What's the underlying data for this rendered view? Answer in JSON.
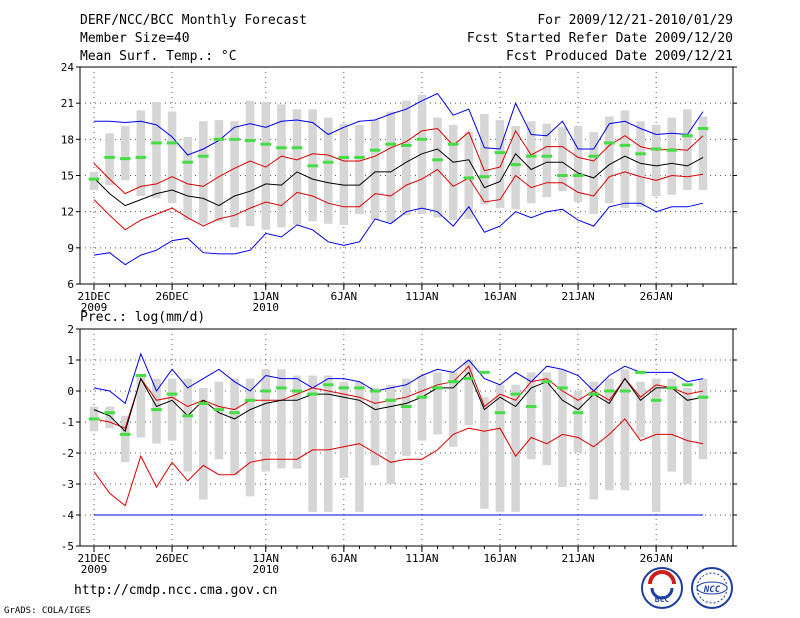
{
  "header": {
    "title": "DERF/NCC/BCC Monthly Forecast",
    "member_size": "Member Size=40",
    "variable": "Mean Surf. Temp.: °C",
    "forecast_period": "For 2009/12/21-2010/01/29",
    "started_refer": "Fcst Started Refer Date 2009/12/20",
    "produced": "Fcst Produced Date 2009/12/21"
  },
  "footer": {
    "url": "http://cmdp.ncc.cma.gov.cn",
    "credit": "GrADS: COLA/IGES",
    "logo_left": "BCC",
    "logo_right": "NCC"
  },
  "colors": {
    "box": "#d6d6d6",
    "ensemble_mean": "#000000",
    "extreme": "#0000ee",
    "percentile": "#dd0000",
    "climatology": "#44dd44",
    "grid": "#555555"
  },
  "chart_data": [
    {
      "type": "line",
      "title": "Mean Surf. Temp.: °C",
      "ylim": [
        6,
        24
      ],
      "yticks": [
        "6",
        "9",
        "12",
        "15",
        "18",
        "21",
        "24"
      ],
      "xticks": [
        {
          "label": "21DEC",
          "sub": "2009",
          "index": 0
        },
        {
          "label": "26DEC",
          "sub": "",
          "index": 5
        },
        {
          "label": "1JAN",
          "sub": "2010",
          "index": 11
        },
        {
          "label": "6JAN",
          "sub": "",
          "index": 16
        },
        {
          "label": "11JAN",
          "sub": "",
          "index": 21
        },
        {
          "label": "16JAN",
          "sub": "",
          "index": 26
        },
        {
          "label": "21JAN",
          "sub": "",
          "index": 31
        },
        {
          "label": "26JAN",
          "sub": "",
          "index": 36
        }
      ],
      "x_count": 40,
      "box_low": [
        13.8,
        14.2,
        14.6,
        13.3,
        13.1,
        12.7,
        11.3,
        11.0,
        11.2,
        10.7,
        10.8,
        10.5,
        10.7,
        10.9,
        11.2,
        11.0,
        10.9,
        11.8,
        11.3,
        11.1,
        11.7,
        11.8,
        11.5,
        11.3,
        11.4,
        12.6,
        12.3,
        12.2,
        12.7,
        13.2,
        13.7,
        12.8,
        11.8,
        12.7,
        12.3,
        12.4,
        13.3,
        13.4,
        13.8,
        13.8
      ],
      "box_high": [
        15.3,
        18.5,
        19.1,
        20.4,
        21.1,
        20.3,
        18.2,
        19.5,
        19.6,
        19.5,
        21.2,
        21.1,
        20.9,
        20.5,
        20.5,
        19.8,
        19.3,
        19.2,
        19.6,
        20.3,
        21.2,
        21.7,
        19.8,
        19.2,
        18.6,
        20.1,
        19.6,
        19.1,
        19.5,
        19.3,
        19.0,
        19.1,
        18.6,
        19.9,
        20.4,
        19.5,
        19.2,
        19.8,
        20.5,
        19.9
      ],
      "series": [
        {
          "name": "max",
          "color": "#0000ee",
          "values": [
            19.5,
            19.5,
            19.4,
            19.5,
            19.2,
            18.2,
            16.7,
            17.2,
            17.9,
            19.0,
            19.3,
            19.0,
            19.5,
            19.6,
            19.4,
            18.4,
            19.0,
            19.5,
            19.6,
            20.1,
            20.5,
            21.2,
            21.8,
            20.0,
            20.5,
            17.3,
            17.2,
            21.0,
            18.4,
            18.3,
            19.5,
            17.2,
            17.2,
            19.3,
            19.5,
            18.9,
            18.4,
            18.5,
            18.4,
            20.3
          ]
        },
        {
          "name": "p80",
          "color": "#dd0000",
          "values": [
            16.0,
            14.7,
            13.5,
            14.1,
            14.3,
            14.9,
            14.3,
            14.1,
            14.9,
            15.6,
            16.2,
            15.7,
            16.6,
            16.3,
            16.8,
            16.7,
            16.2,
            16.2,
            16.6,
            17.3,
            17.8,
            18.7,
            18.9,
            17.5,
            18.6,
            15.4,
            15.7,
            18.7,
            16.7,
            17.4,
            17.4,
            16.5,
            16.2,
            17.5,
            18.3,
            17.4,
            17.1,
            17.2,
            17.1,
            18.3
          ]
        },
        {
          "name": "mean",
          "color": "#000000",
          "values": [
            14.8,
            13.5,
            12.5,
            13.0,
            13.5,
            13.8,
            13.3,
            13.1,
            12.5,
            13.3,
            13.7,
            14.3,
            14.2,
            15.3,
            14.7,
            14.4,
            14.2,
            14.2,
            15.3,
            15.3,
            16.1,
            16.8,
            17.2,
            16.1,
            16.3,
            14.0,
            14.5,
            16.8,
            15.5,
            16.1,
            16.1,
            15.2,
            14.8,
            15.9,
            16.6,
            16.0,
            15.8,
            16.0,
            15.8,
            16.5
          ]
        },
        {
          "name": "p20",
          "color": "#dd0000",
          "values": [
            13.0,
            11.7,
            10.5,
            11.3,
            11.8,
            12.3,
            11.5,
            10.8,
            11.4,
            11.7,
            12.3,
            12.8,
            12.5,
            13.6,
            13.3,
            12.7,
            12.4,
            12.4,
            13.5,
            13.3,
            14.2,
            14.7,
            15.5,
            14.1,
            14.8,
            12.8,
            13.0,
            15.0,
            14.0,
            14.4,
            14.4,
            13.6,
            13.3,
            14.9,
            15.3,
            14.9,
            14.6,
            15.0,
            14.9,
            15.1
          ]
        },
        {
          "name": "min",
          "color": "#0000ee",
          "values": [
            8.4,
            8.6,
            7.6,
            8.4,
            8.8,
            9.6,
            9.8,
            8.6,
            8.5,
            8.5,
            8.8,
            10.2,
            9.9,
            10.9,
            10.5,
            9.5,
            9.2,
            9.5,
            11.4,
            11.0,
            12.0,
            12.3,
            12.0,
            10.8,
            12.4,
            10.3,
            10.8,
            12.0,
            11.5,
            12.0,
            12.2,
            11.3,
            10.8,
            12.4,
            12.7,
            12.7,
            12.0,
            12.4,
            12.4,
            12.7
          ]
        }
      ],
      "climatology": [
        14.7,
        16.5,
        16.4,
        16.5,
        17.7,
        17.7,
        16.1,
        16.6,
        18.0,
        18.0,
        17.9,
        17.6,
        17.3,
        17.3,
        15.8,
        16.1,
        16.5,
        16.5,
        17.1,
        17.6,
        17.5,
        18.0,
        16.3,
        17.6,
        14.8,
        14.9,
        16.9,
        15.9,
        16.6,
        16.6,
        15.0,
        15.0,
        16.6,
        17.7,
        17.5,
        16.8,
        17.2,
        17.1,
        18.3,
        18.9
      ]
    },
    {
      "type": "line",
      "title": "Prec.: log(mm/d)",
      "ylim": [
        -5,
        2
      ],
      "yticks": [
        "-5",
        "-4",
        "-3",
        "-2",
        "-1",
        "0",
        "1",
        "2"
      ],
      "xticks": [
        {
          "label": "21DEC",
          "sub": "2009",
          "index": 0
        },
        {
          "label": "26DEC",
          "sub": "",
          "index": 5
        },
        {
          "label": "1JAN",
          "sub": "2010",
          "index": 11
        },
        {
          "label": "6JAN",
          "sub": "",
          "index": 16
        },
        {
          "label": "11JAN",
          "sub": "",
          "index": 21
        },
        {
          "label": "16JAN",
          "sub": "",
          "index": 26
        },
        {
          "label": "21JAN",
          "sub": "",
          "index": 31
        },
        {
          "label": "26JAN",
          "sub": "",
          "index": 36
        }
      ],
      "x_count": 40,
      "box_low": [
        -1.3,
        -1.2,
        -2.3,
        -1.5,
        -1.7,
        -1.6,
        -2.6,
        -3.5,
        -2.2,
        -2.7,
        -3.4,
        -2.6,
        -2.5,
        -2.5,
        -3.9,
        -3.9,
        -2.8,
        -3.9,
        -2.4,
        -3.0,
        -2.1,
        -1.6,
        -1.4,
        -1.8,
        -1.1,
        -3.8,
        -3.9,
        -3.9,
        -2.2,
        -2.4,
        -3.1,
        -2.0,
        -3.5,
        -3.2,
        -3.2,
        -1.5,
        -3.9,
        -2.6,
        -3.0,
        -2.2
      ],
      "box_high": [
        -0.5,
        -0.5,
        -0.8,
        0.5,
        0.4,
        0.4,
        0.4,
        0.1,
        0.3,
        0.4,
        0.4,
        0.7,
        0.7,
        0.5,
        0.5,
        0.5,
        0.3,
        0.3,
        0.1,
        0.2,
        0.4,
        0.5,
        0.6,
        0.6,
        1.0,
        -0.2,
        0.2,
        0.2,
        0.6,
        0.6,
        0.7,
        0.0,
        0.3,
        0.4,
        0.7,
        0.3,
        0.4,
        0.4,
        0.1,
        0.4
      ],
      "series": [
        {
          "name": "max",
          "color": "#0000ee",
          "values": [
            0.1,
            0.0,
            -0.4,
            1.2,
            0.0,
            0.7,
            0.1,
            0.4,
            0.7,
            0.3,
            0.0,
            0.5,
            0.4,
            0.4,
            0.1,
            0.4,
            0.4,
            0.3,
            0.0,
            0.1,
            0.2,
            0.5,
            0.7,
            0.6,
            1.0,
            0.4,
            0.2,
            0.6,
            0.3,
            0.8,
            0.7,
            0.5,
            0.0,
            0.5,
            0.8,
            0.6,
            0.6,
            0.6,
            0.3,
            0.4
          ]
        },
        {
          "name": "p80",
          "color": "#dd0000",
          "values": [
            -0.9,
            -1.0,
            -1.2,
            0.4,
            -0.3,
            -0.2,
            -0.5,
            -0.3,
            -0.5,
            -0.6,
            -0.3,
            -0.3,
            -0.3,
            -0.1,
            0.1,
            0.0,
            -0.1,
            -0.2,
            -0.4,
            -0.3,
            -0.2,
            0.0,
            0.2,
            0.3,
            0.8,
            -0.5,
            -0.1,
            -0.3,
            0.3,
            0.4,
            0.0,
            -0.3,
            0.0,
            -0.3,
            0.4,
            -0.2,
            0.2,
            0.1,
            -0.1,
            0.0
          ]
        },
        {
          "name": "mean",
          "color": "#000000",
          "values": [
            -0.6,
            -0.8,
            -1.3,
            0.4,
            -0.5,
            -0.3,
            -0.8,
            -0.3,
            -0.7,
            -0.9,
            -0.6,
            -0.4,
            -0.3,
            -0.3,
            -0.1,
            -0.1,
            -0.2,
            -0.3,
            -0.6,
            -0.5,
            -0.4,
            -0.2,
            0.1,
            0.1,
            0.6,
            -0.6,
            -0.2,
            -0.5,
            0.1,
            0.3,
            -0.3,
            -0.6,
            -0.1,
            -0.4,
            0.4,
            -0.3,
            0.1,
            0.1,
            -0.3,
            -0.2
          ]
        },
        {
          "name": "p20",
          "color": "#dd0000",
          "values": [
            -2.6,
            -3.3,
            -3.7,
            -2.1,
            -3.1,
            -2.3,
            -2.9,
            -2.4,
            -2.7,
            -2.7,
            -2.3,
            -2.2,
            -2.2,
            -2.2,
            -1.9,
            -1.9,
            -1.8,
            -1.7,
            -2.0,
            -2.3,
            -2.2,
            -2.2,
            -1.9,
            -1.4,
            -1.2,
            -1.3,
            -1.2,
            -2.1,
            -1.5,
            -1.7,
            -1.4,
            -1.5,
            -1.8,
            -1.4,
            -0.9,
            -1.6,
            -1.4,
            -1.4,
            -1.6,
            -1.7
          ]
        },
        {
          "name": "min",
          "color": "#0000ee",
          "values": [
            -4.0,
            -4.0,
            -4.0,
            -4.0,
            -4.0,
            -4.0,
            -4.0,
            -4.0,
            -4.0,
            -4.0,
            -4.0,
            -4.0,
            -4.0,
            -4.0,
            -4.0,
            -4.0,
            -4.0,
            -4.0,
            -4.0,
            -4.0,
            -4.0,
            -4.0,
            -4.0,
            -4.0,
            -4.0,
            -4.0,
            -4.0,
            -4.0,
            -4.0,
            -4.0,
            -4.0,
            -4.0,
            -4.0,
            -4.0,
            -4.0,
            -4.0,
            -4.0,
            -4.0,
            -4.0,
            -4.0
          ]
        }
      ],
      "climatology": [
        -0.9,
        -0.7,
        -1.4,
        0.5,
        -0.6,
        -0.1,
        -0.8,
        -0.4,
        -0.6,
        -0.7,
        -0.3,
        0.0,
        0.1,
        0.0,
        -0.1,
        0.2,
        0.1,
        0.1,
        0.0,
        -0.3,
        -0.5,
        -0.2,
        0.1,
        0.3,
        0.4,
        0.6,
        -0.7,
        -0.1,
        -0.5,
        0.3,
        0.1,
        -0.7,
        -0.1,
        0.0,
        0.0,
        0.6,
        -0.3,
        0.1,
        0.2,
        -0.2
      ]
    }
  ]
}
